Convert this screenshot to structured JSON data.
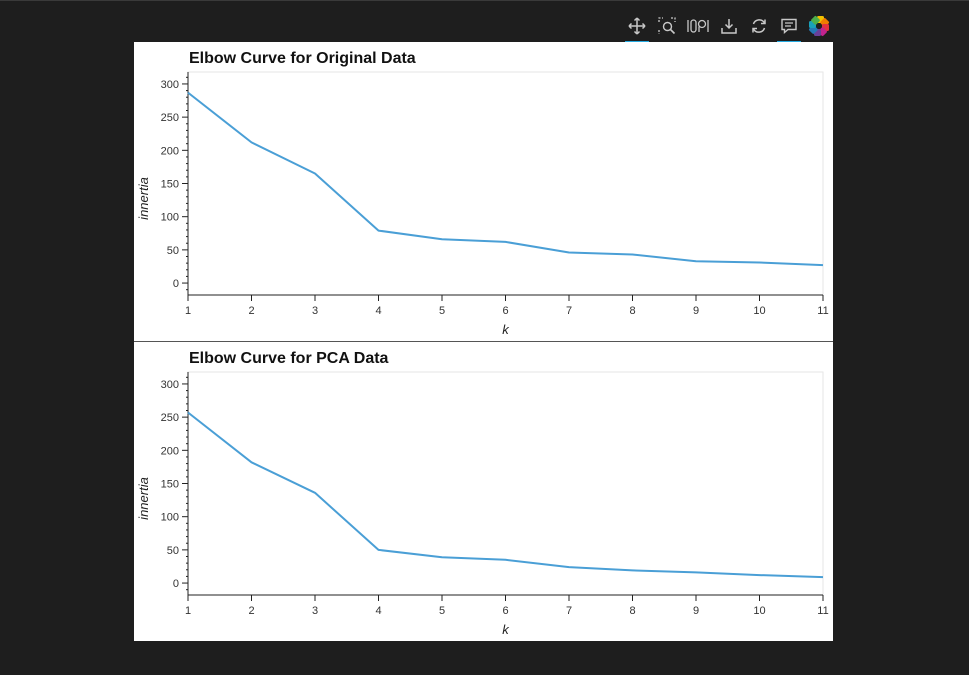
{
  "toolbar": {
    "tools": [
      "pan-icon",
      "box-zoom-icon",
      "wheel-zoom-icon",
      "save-icon",
      "reset-icon",
      "hover-icon"
    ],
    "active": [
      "pan-icon",
      "hover-icon"
    ]
  },
  "colors": {
    "line": "#4a9fd6",
    "background": "#1e1e1e"
  },
  "chart_data": [
    {
      "type": "line",
      "title": "Elbow Curve for Original Data",
      "xlabel": "k",
      "ylabel": "innertia",
      "x": [
        1,
        2,
        3,
        4,
        5,
        6,
        7,
        8,
        9,
        10,
        11
      ],
      "series": [
        {
          "values": [
            287,
            212,
            165,
            79,
            66,
            62,
            46,
            43,
            33,
            31,
            27
          ]
        }
      ],
      "xlim": [
        1,
        11
      ],
      "ylim": [
        -18,
        318
      ],
      "xticks": [
        1,
        2,
        3,
        4,
        5,
        6,
        7,
        8,
        9,
        10,
        11
      ],
      "yticks": [
        0,
        50,
        100,
        150,
        200,
        250,
        300
      ],
      "grid": false
    },
    {
      "type": "line",
      "title": "Elbow Curve for PCA Data",
      "xlabel": "k",
      "ylabel": "innertia",
      "x": [
        1,
        2,
        3,
        4,
        5,
        6,
        7,
        8,
        9,
        10,
        11
      ],
      "series": [
        {
          "values": [
            257,
            182,
            136,
            50,
            39,
            35,
            24,
            19,
            16,
            12,
            9
          ]
        }
      ],
      "xlim": [
        1,
        11
      ],
      "ylim": [
        -18,
        318
      ],
      "xticks": [
        1,
        2,
        3,
        4,
        5,
        6,
        7,
        8,
        9,
        10,
        11
      ],
      "yticks": [
        0,
        50,
        100,
        150,
        200,
        250,
        300
      ],
      "grid": false
    }
  ]
}
